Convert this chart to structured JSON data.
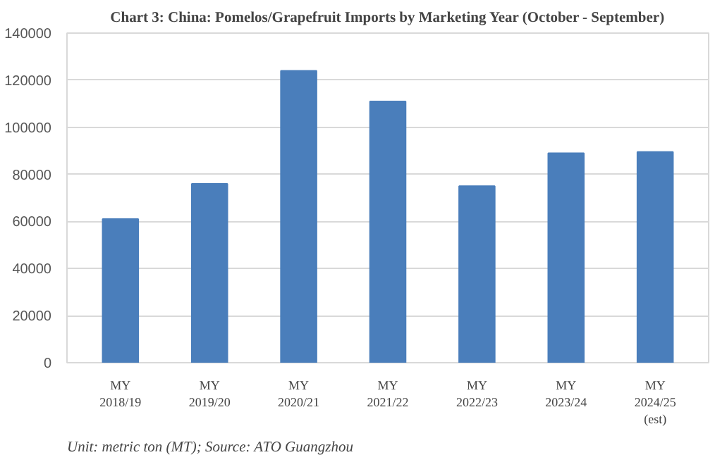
{
  "chart_data": {
    "type": "bar",
    "title": "Chart 3: China: Pomelos/Grapefruit Imports by Marketing Year (October - September)",
    "categories": [
      "MY\n2018/19",
      "MY\n2019/20",
      "MY\n2020/21",
      "MY\n2021/22",
      "MY\n2022/23",
      "MY\n2023/24",
      "MY\n2024/25\n(est)"
    ],
    "values": [
      61000,
      76000,
      124000,
      111000,
      75000,
      89000,
      89500
    ],
    "color": "#4a7ebb",
    "ylim": [
      0,
      140000
    ],
    "yticks": [
      0,
      20000,
      40000,
      60000,
      80000,
      100000,
      120000,
      140000
    ],
    "grid": "y",
    "annotations": [
      "Unit: metric ton (MT); Source: ATO Guangzhou"
    ]
  }
}
